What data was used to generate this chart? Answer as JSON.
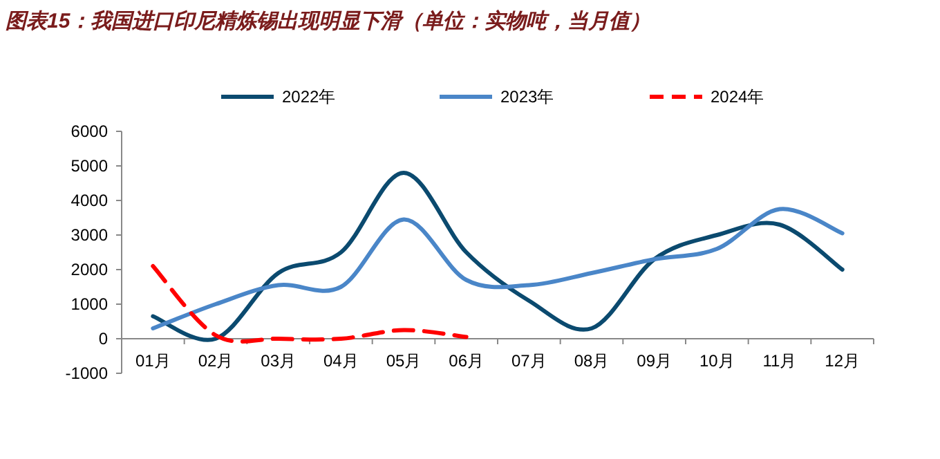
{
  "chart_data": {
    "type": "line",
    "title": "图表15：我国进口印尼精炼锡出现明显下滑（单位：实物吨，当月值）",
    "categories": [
      "01月",
      "02月",
      "03月",
      "04月",
      "05月",
      "06月",
      "07月",
      "08月",
      "09月",
      "10月",
      "11月",
      "12月"
    ],
    "series": [
      {
        "name": "2022年",
        "color": "#0b4a6f",
        "values": [
          650,
          0,
          1900,
          2500,
          4800,
          2500,
          1100,
          300,
          2300,
          3000,
          3300,
          2000
        ]
      },
      {
        "name": "2023年",
        "color": "#4a86c8",
        "values": [
          300,
          1000,
          1550,
          1500,
          3450,
          1700,
          1550,
          1900,
          2300,
          2600,
          3750,
          3050
        ]
      },
      {
        "name": "2024年",
        "color": "#ff0000",
        "line_style": "dashed",
        "values": [
          2100,
          100,
          0,
          0,
          250,
          50,
          null,
          null,
          null,
          null,
          null,
          null
        ]
      }
    ],
    "ylim": [
      -1000,
      6000
    ],
    "yticks": [
      -1000,
      0,
      1000,
      2000,
      3000,
      4000,
      5000,
      6000
    ],
    "legend": "top",
    "grid": false
  }
}
